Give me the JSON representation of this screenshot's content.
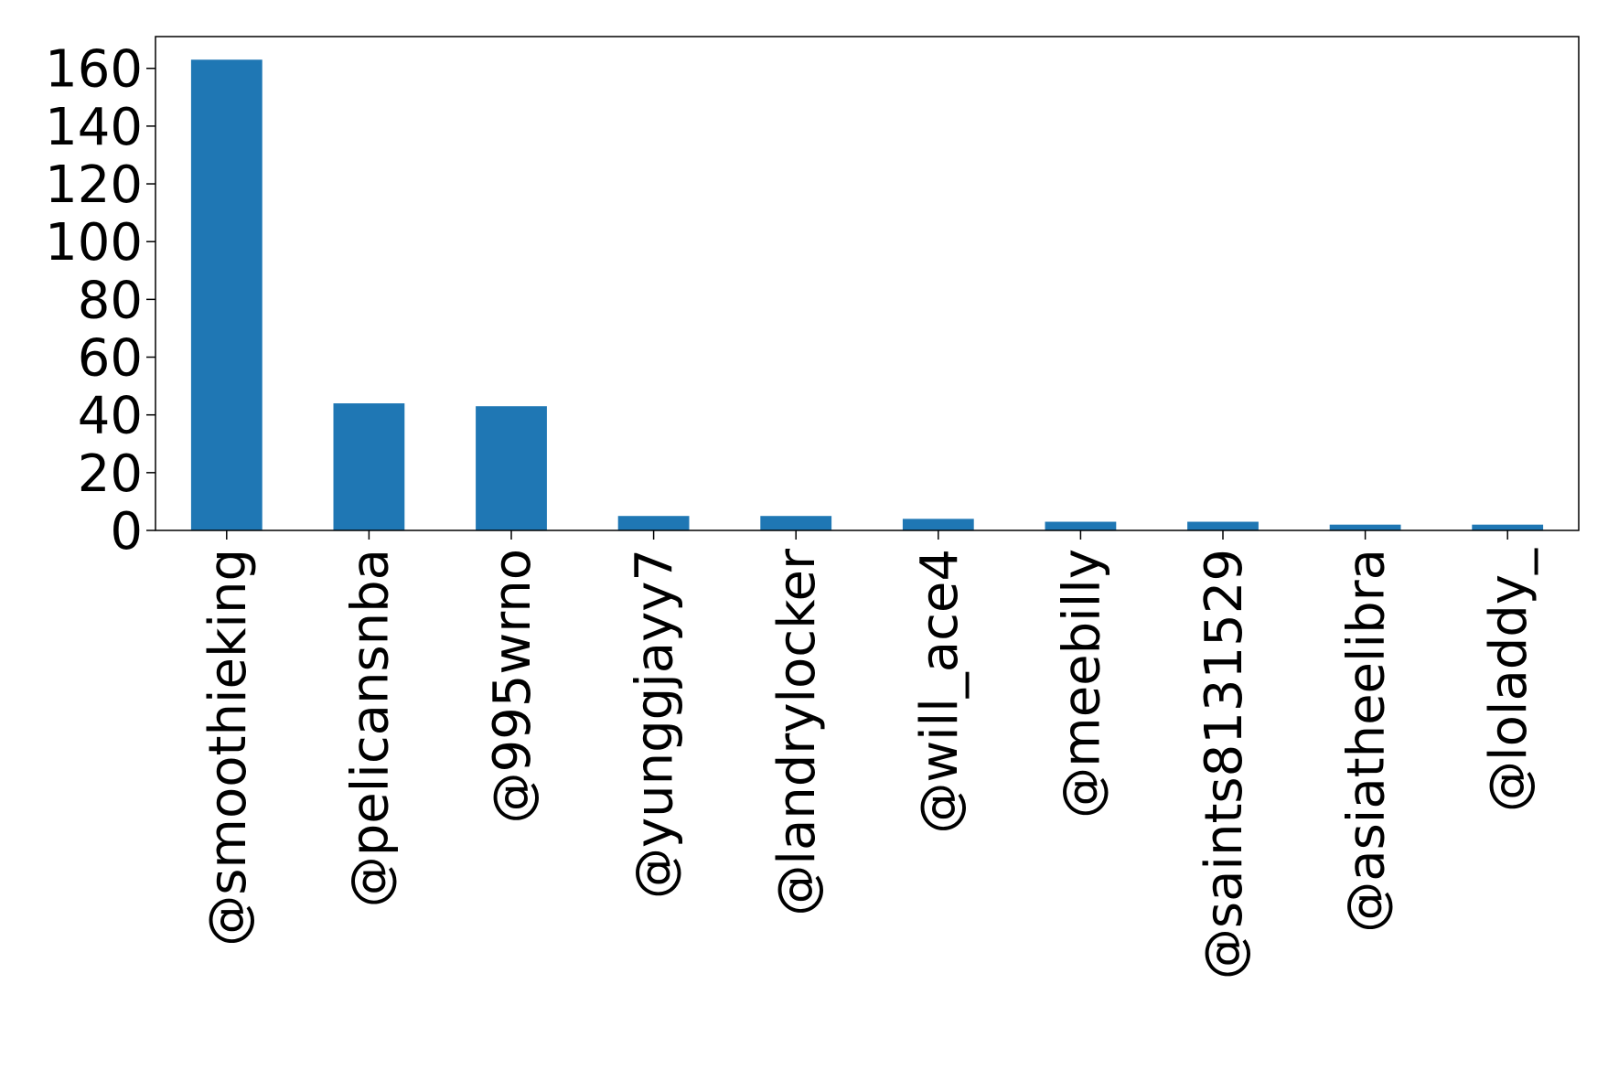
{
  "chart_data": {
    "type": "bar",
    "title": "",
    "xlabel": "",
    "ylabel": "",
    "categories": [
      "@smoothieking",
      "@pelicansnba",
      "@995wrno",
      "@yunggjayy7",
      "@landrylocker",
      "@will_ace4",
      "@meebilly",
      "@saints8131529",
      "@asiatheelibra",
      "@loladdy_"
    ],
    "values": [
      163,
      44,
      43,
      5,
      5,
      4,
      3,
      3,
      2,
      2
    ],
    "ylim": [
      0,
      171
    ],
    "yticks": [
      "0",
      "20",
      "40",
      "60",
      "80",
      "100",
      "120",
      "140",
      "160"
    ],
    "grid": false,
    "bar_color": "#1f77b4"
  }
}
